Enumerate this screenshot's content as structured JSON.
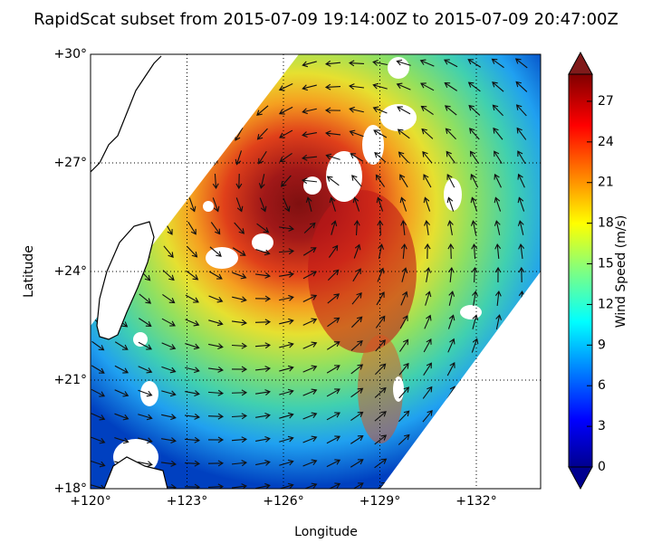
{
  "chart_data": {
    "type": "map",
    "title": "RapidScat subset from 2015-07-09 19:14:00Z to 2015-07-09 20:47:00Z",
    "xlabel": "Longitude",
    "ylabel": "Latitude",
    "xlim": [
      120,
      134
    ],
    "ylim": [
      18,
      30
    ],
    "xticks": [
      {
        "value": 120,
        "label": "+120°"
      },
      {
        "value": 123,
        "label": "+123°"
      },
      {
        "value": 126,
        "label": "+126°"
      },
      {
        "value": 129,
        "label": "+129°"
      },
      {
        "value": 132,
        "label": "+132°"
      }
    ],
    "yticks": [
      {
        "value": 18,
        "label": "+18°"
      },
      {
        "value": 21,
        "label": "+21°"
      },
      {
        "value": 24,
        "label": "+24°"
      },
      {
        "value": 27,
        "label": "+27°"
      },
      {
        "value": 30,
        "label": "+30°"
      }
    ],
    "grid": true,
    "colorbar": {
      "label": "Wind Speed (m/s)",
      "lim": [
        0,
        29
      ],
      "ticks": [
        0,
        3,
        6,
        9,
        12,
        15,
        18,
        21,
        24,
        27
      ]
    }
  }
}
